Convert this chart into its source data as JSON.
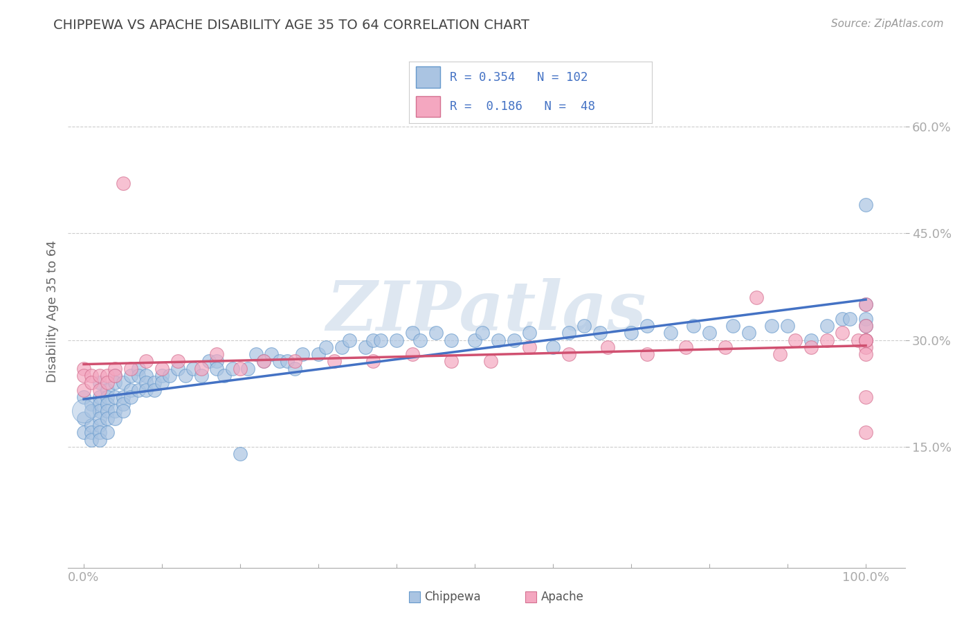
{
  "title": "CHIPPEWA VS APACHE DISABILITY AGE 35 TO 64 CORRELATION CHART",
  "source": "Source: ZipAtlas.com",
  "ylabel": "Disability Age 35 to 64",
  "xlim": [
    -0.02,
    1.05
  ],
  "ylim": [
    -0.02,
    0.7
  ],
  "yticks": [
    0.15,
    0.3,
    0.45,
    0.6
  ],
  "ytick_labels": [
    "15.0%",
    "30.0%",
    "45.0%",
    "60.0%"
  ],
  "xtick_left_label": "0.0%",
  "xtick_right_label": "100.0%",
  "chippewa_R": 0.354,
  "chippewa_N": 102,
  "apache_R": 0.186,
  "apache_N": 48,
  "chippewa_color": "#aac4e2",
  "apache_color": "#f4a7c0",
  "chippewa_edge_color": "#6699cc",
  "apache_edge_color": "#d47090",
  "chippewa_line_color": "#4472c4",
  "apache_line_color": "#d05070",
  "watermark_text": "ZIPatlas",
  "watermark_color": "#c8d8e8",
  "chippewa_x": [
    0.0,
    0.0,
    0.0,
    0.01,
    0.01,
    0.01,
    0.01,
    0.01,
    0.02,
    0.02,
    0.02,
    0.02,
    0.02,
    0.02,
    0.02,
    0.02,
    0.03,
    0.03,
    0.03,
    0.03,
    0.03,
    0.03,
    0.04,
    0.04,
    0.04,
    0.04,
    0.04,
    0.05,
    0.05,
    0.05,
    0.05,
    0.06,
    0.06,
    0.06,
    0.07,
    0.07,
    0.07,
    0.08,
    0.08,
    0.08,
    0.09,
    0.09,
    0.1,
    0.1,
    0.11,
    0.12,
    0.13,
    0.14,
    0.15,
    0.16,
    0.17,
    0.17,
    0.18,
    0.19,
    0.2,
    0.21,
    0.22,
    0.23,
    0.24,
    0.25,
    0.26,
    0.27,
    0.28,
    0.3,
    0.31,
    0.33,
    0.34,
    0.36,
    0.37,
    0.38,
    0.4,
    0.42,
    0.43,
    0.45,
    0.47,
    0.5,
    0.51,
    0.53,
    0.55,
    0.57,
    0.6,
    0.62,
    0.64,
    0.66,
    0.7,
    0.72,
    0.75,
    0.78,
    0.8,
    0.83,
    0.85,
    0.88,
    0.9,
    0.93,
    0.95,
    0.97,
    0.98,
    1.0,
    1.0,
    1.0,
    1.0,
    1.0
  ],
  "chippewa_y": [
    0.22,
    0.19,
    0.17,
    0.21,
    0.2,
    0.18,
    0.17,
    0.16,
    0.24,
    0.22,
    0.21,
    0.2,
    0.19,
    0.18,
    0.17,
    0.16,
    0.23,
    0.22,
    0.21,
    0.2,
    0.19,
    0.17,
    0.25,
    0.24,
    0.22,
    0.2,
    0.19,
    0.24,
    0.22,
    0.21,
    0.2,
    0.25,
    0.23,
    0.22,
    0.26,
    0.25,
    0.23,
    0.25,
    0.24,
    0.23,
    0.24,
    0.23,
    0.25,
    0.24,
    0.25,
    0.26,
    0.25,
    0.26,
    0.25,
    0.27,
    0.27,
    0.26,
    0.25,
    0.26,
    0.14,
    0.26,
    0.28,
    0.27,
    0.28,
    0.27,
    0.27,
    0.26,
    0.28,
    0.28,
    0.29,
    0.29,
    0.3,
    0.29,
    0.3,
    0.3,
    0.3,
    0.31,
    0.3,
    0.31,
    0.3,
    0.3,
    0.31,
    0.3,
    0.3,
    0.31,
    0.29,
    0.31,
    0.32,
    0.31,
    0.31,
    0.32,
    0.31,
    0.32,
    0.31,
    0.32,
    0.31,
    0.32,
    0.32,
    0.3,
    0.32,
    0.33,
    0.33,
    0.33,
    0.35,
    0.49,
    0.32,
    0.3
  ],
  "apache_x": [
    0.0,
    0.0,
    0.0,
    0.01,
    0.01,
    0.02,
    0.02,
    0.03,
    0.03,
    0.04,
    0.04,
    0.05,
    0.06,
    0.08,
    0.1,
    0.12,
    0.15,
    0.17,
    0.2,
    0.23,
    0.27,
    0.32,
    0.37,
    0.42,
    0.47,
    0.52,
    0.57,
    0.62,
    0.67,
    0.72,
    0.77,
    0.82,
    0.86,
    0.89,
    0.91,
    0.93,
    0.95,
    0.97,
    0.99,
    1.0,
    1.0,
    1.0,
    1.0,
    1.0,
    1.0,
    1.0,
    1.0,
    1.0
  ],
  "apache_y": [
    0.26,
    0.25,
    0.23,
    0.25,
    0.24,
    0.25,
    0.23,
    0.25,
    0.24,
    0.26,
    0.25,
    0.52,
    0.26,
    0.27,
    0.26,
    0.27,
    0.26,
    0.28,
    0.26,
    0.27,
    0.27,
    0.27,
    0.27,
    0.28,
    0.27,
    0.27,
    0.29,
    0.28,
    0.29,
    0.28,
    0.29,
    0.29,
    0.36,
    0.28,
    0.3,
    0.29,
    0.3,
    0.31,
    0.3,
    0.29,
    0.3,
    0.32,
    0.3,
    0.17,
    0.35,
    0.22,
    0.28,
    0.3
  ],
  "background_color": "#ffffff",
  "grid_color": "#cccccc",
  "title_color": "#444444",
  "source_color": "#999999",
  "axis_color": "#aaaaaa",
  "tick_color": "#4472c4",
  "legend_border_color": "#cccccc"
}
